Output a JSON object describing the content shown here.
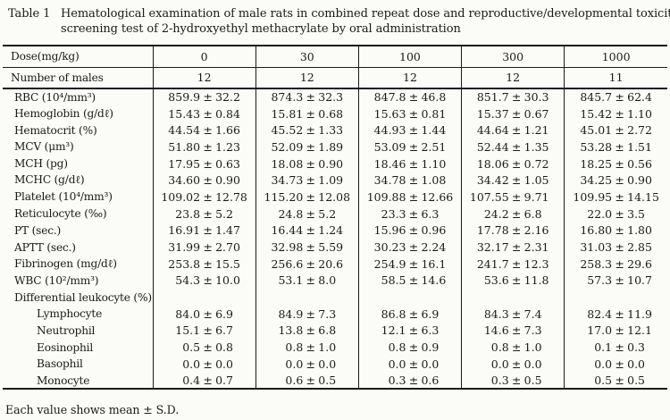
{
  "page": {
    "background_color": "#fbfbf7",
    "text_color": "#1a1a1a",
    "rule_color": "#1a1a1a"
  },
  "title": {
    "label": "Table 1",
    "lines": [
      "Hematological examination of male rats in combined repeat dose and reproductive/developmental toxicity",
      "screening test of 2-hydroxyethyl methacrylate by oral administration"
    ]
  },
  "table": {
    "dose": {
      "label": "Dose(mg/kg)",
      "values": [
        "0",
        "30",
        "100",
        "300",
        "1000"
      ]
    },
    "males": {
      "label": "Number of males",
      "values": [
        "12",
        "12",
        "12",
        "12",
        "11"
      ]
    },
    "rows": [
      {
        "label": "RBC (10⁴/mm³)",
        "indent": false,
        "values": [
          "859.9 ± 32.2",
          "874.3 ± 32.3",
          "847.8 ± 46.8",
          "851.7 ± 30.3",
          "845.7 ± 62.4"
        ]
      },
      {
        "label": "Hemoglobin (g/dℓ)",
        "indent": false,
        "values": [
          "15.43 ± 0.84",
          "15.81 ± 0.68",
          "15.63 ± 0.81",
          "15.37 ± 0.67",
          "15.42 ± 1.10"
        ]
      },
      {
        "label": "Hematocrit (%)",
        "indent": false,
        "values": [
          "44.54 ± 1.66",
          "45.52 ± 1.33",
          "44.93 ± 1.44",
          "44.64 ± 1.21",
          "45.01 ± 2.72"
        ]
      },
      {
        "label": "MCV (μm³)",
        "indent": false,
        "values": [
          "51.80 ± 1.23",
          "52.09 ± 1.89",
          "53.09 ± 2.51",
          "52.44 ± 1.35",
          "53.28 ± 1.51"
        ]
      },
      {
        "label": "MCH (pg)",
        "indent": false,
        "values": [
          "17.95 ± 0.63",
          "18.08 ± 0.90",
          "18.46 ± 1.10",
          "18.06 ± 0.72",
          "18.25 ± 0.56"
        ]
      },
      {
        "label": "MCHC (g/dℓ)",
        "indent": false,
        "values": [
          "34.60 ± 0.90",
          "34.73 ± 1.09",
          "34.78 ± 1.08",
          "34.42 ± 1.05",
          "34.25 ± 0.90"
        ]
      },
      {
        "label": "Platelet (10⁴/mm³)",
        "indent": false,
        "values": [
          "109.02 ± 12.78",
          "115.20 ± 12.08",
          "109.88 ± 12.66",
          "107.55 ± 9.71",
          "109.95 ± 14.15"
        ]
      },
      {
        "label": "Reticulocyte (‰)",
        "indent": false,
        "values": [
          "23.8 ± 5.2",
          "24.8 ± 5.2",
          "23.3 ± 6.3",
          "24.2 ± 6.8",
          "22.0 ± 3.5"
        ]
      },
      {
        "label": "PT (sec.)",
        "indent": false,
        "values": [
          "16.91 ± 1.47",
          "16.44 ± 1.24",
          "15.96 ± 0.96",
          "17.78 ± 2.16",
          "16.80 ± 1.80"
        ]
      },
      {
        "label": "APTT (sec.)",
        "indent": false,
        "values": [
          "31.99 ± 2.70",
          "32.98 ± 5.59",
          "30.23 ± 2.24",
          "32.17 ± 2.31",
          "31.03 ± 2.85"
        ]
      },
      {
        "label": "Fibrinogen (mg/dℓ)",
        "indent": false,
        "values": [
          "253.8 ± 15.5",
          "256.6 ± 20.6",
          "254.9 ± 16.1",
          "241.7 ± 12.3",
          "258.3 ± 29.6"
        ]
      },
      {
        "label": "WBC (10²/mm³)",
        "indent": false,
        "values": [
          "54.3 ± 10.0",
          "53.1 ± 8.0",
          "58.5 ± 14.6",
          "53.6 ± 11.8",
          "57.3 ± 10.7"
        ]
      },
      {
        "label": "Differential leukocyte (%)",
        "indent": false,
        "values": [
          "",
          "",
          "",
          "",
          ""
        ]
      },
      {
        "label": "Lymphocyte",
        "indent": true,
        "values": [
          "84.0 ± 6.9",
          "84.9 ± 7.3",
          "86.8 ± 6.9",
          "84.3 ± 7.4",
          "82.4 ± 11.9"
        ]
      },
      {
        "label": "Neutrophil",
        "indent": true,
        "values": [
          "15.1 ± 6.7",
          "13.8 ± 6.8",
          "12.1 ± 6.3",
          "14.6 ± 7.3",
          "17.0 ± 12.1"
        ]
      },
      {
        "label": "Eosinophil",
        "indent": true,
        "values": [
          "0.5 ± 0.8",
          "0.8 ± 1.0",
          "0.8 ± 0.9",
          "0.8 ± 1.0",
          "0.1 ± 0.3"
        ]
      },
      {
        "label": "Basophil",
        "indent": true,
        "values": [
          "0.0 ± 0.0",
          "0.0 ± 0.0",
          "0.0 ± 0.0",
          "0.0 ± 0.0",
          "0.0 ± 0.0"
        ]
      },
      {
        "label": "Monocyte",
        "indent": true,
        "values": [
          "0.4 ± 0.7",
          "0.6 ± 0.5",
          "0.3 ± 0.6",
          "0.3 ± 0.5",
          "0.5 ± 0.5"
        ]
      }
    ]
  },
  "footnote": "Each value shows mean ± S.D."
}
